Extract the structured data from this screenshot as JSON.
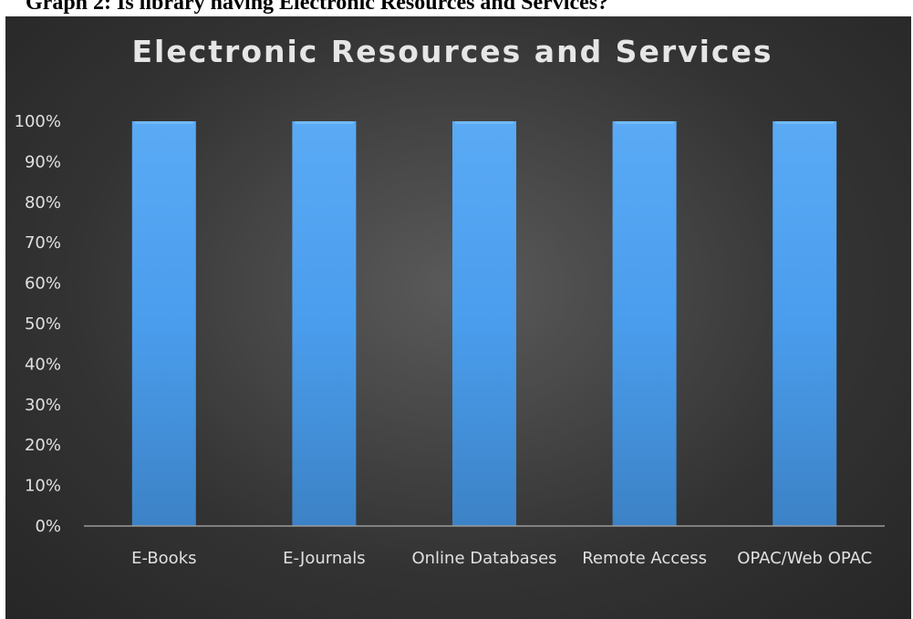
{
  "caption": "Graph 2: Is library having Electronic Resources and Services?",
  "chart_data": {
    "type": "bar",
    "title": "Electronic Resources and Services",
    "categories": [
      "E-Books",
      "E-Journals",
      "Online Databases",
      "Remote Access",
      "OPAC/Web OPAC"
    ],
    "values": [
      100,
      100,
      100,
      100,
      100
    ],
    "yticks": [
      "0%",
      "10%",
      "20%",
      "30%",
      "40%",
      "50%",
      "60%",
      "70%",
      "80%",
      "90%",
      "100%"
    ],
    "ylim": [
      0,
      100
    ],
    "xlabel": "",
    "ylabel": "",
    "grid": false,
    "legend": "none",
    "colors": {
      "bar_top": "#5aaaf5",
      "bar_mid": "#4a9ded",
      "bar_bottom": "#3f86cc",
      "axis": "#9a9a9a",
      "text": "#e0e0e0"
    }
  }
}
